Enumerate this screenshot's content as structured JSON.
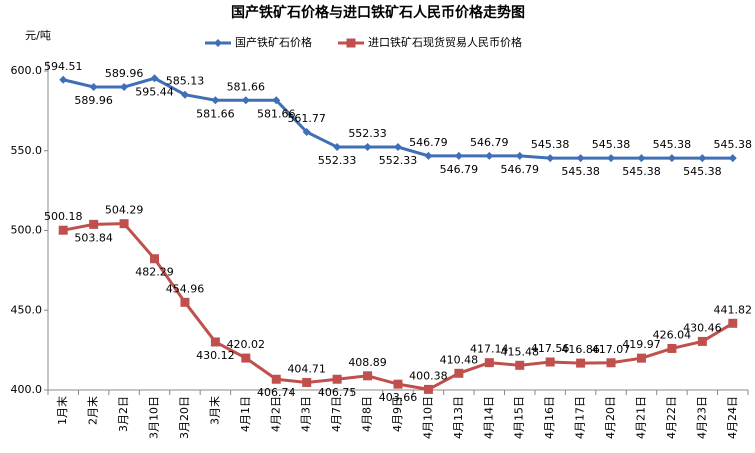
{
  "chart_data": {
    "type": "line",
    "title": "国产铁矿石价格与进口铁矿石人民币价格走势图",
    "y_label": "元/吨",
    "categories": [
      "1月末",
      "2月末",
      "3月2日",
      "3月10日",
      "3月20日",
      "3月末",
      "4月1日",
      "4月2日",
      "4月3日",
      "4月7日",
      "4月8日",
      "4月9日",
      "4月10日",
      "4月13日",
      "4月14日",
      "4月15日",
      "4月16日",
      "4月17日",
      "4月20日",
      "4月21日",
      "4月22日",
      "4月23日",
      "4月24日"
    ],
    "series": [
      {
        "name": "国产铁矿石价格",
        "color": "#3f6fb5",
        "marker": "diamond",
        "values": [
          594.51,
          589.96,
          589.96,
          595.44,
          585.13,
          581.66,
          581.66,
          581.66,
          561.77,
          552.33,
          552.33,
          552.33,
          546.79,
          546.79,
          546.79,
          546.79,
          545.38,
          545.38,
          545.38,
          545.38,
          545.38,
          545.38,
          545.38
        ]
      },
      {
        "name": "进口铁矿石现货贸易人民币价格",
        "color": "#c0504d",
        "marker": "square",
        "values": [
          500.18,
          503.84,
          504.29,
          482.29,
          454.96,
          430.12,
          420.02,
          406.74,
          404.71,
          406.75,
          408.89,
          403.66,
          400.38,
          410.48,
          417.14,
          415.48,
          417.56,
          416.86,
          417.07,
          419.97,
          426.04,
          430.46,
          441.82
        ]
      }
    ],
    "ylim": [
      400,
      600
    ],
    "yticks": [
      {
        "value": 400,
        "label": "400.0"
      },
      {
        "value": 450,
        "label": "450.0"
      },
      {
        "value": 500,
        "label": "500.0"
      },
      {
        "value": 550,
        "label": "550.0"
      },
      {
        "value": 600,
        "label": "600.0"
      }
    ],
    "grid": false,
    "legend": "top"
  }
}
